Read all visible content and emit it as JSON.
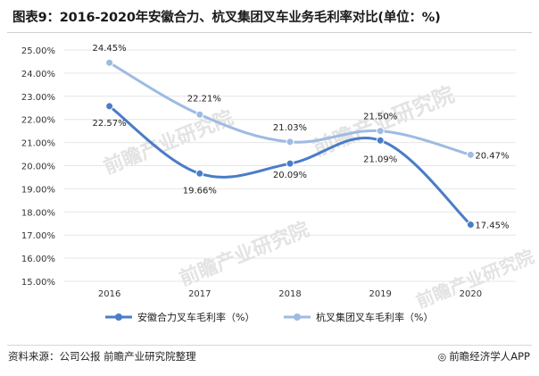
{
  "title": "图表9：2016-2020年安徽合力、杭叉集团叉车业务毛利率对比(单位：%)",
  "chart_data": {
    "type": "line",
    "categories": [
      "2016",
      "2017",
      "2018",
      "2019",
      "2020"
    ],
    "series": [
      {
        "name": "安徽合力叉车毛利率（%）",
        "color": "#4a7cc7",
        "values": [
          22.57,
          19.66,
          20.09,
          21.09,
          17.45
        ],
        "labels": [
          "22.57%",
          "19.66%",
          "20.09%",
          "21.09%",
          "17.45%"
        ]
      },
      {
        "name": "杭叉集团叉车毛利率（%）",
        "color": "#9dbbe3",
        "values": [
          24.45,
          22.21,
          21.03,
          21.5,
          20.47
        ],
        "labels": [
          "24.45%",
          "22.21%",
          "21.03%",
          "21.50%",
          "20.47%"
        ]
      }
    ],
    "ylim": [
      15,
      25
    ],
    "yticks": [
      "15.00%",
      "16.00%",
      "17.00%",
      "18.00%",
      "19.00%",
      "20.00%",
      "21.00%",
      "22.00%",
      "23.00%",
      "24.00%",
      "25.00%"
    ],
    "grid": true,
    "legend": "bottom"
  },
  "watermark": "前瞻产业研究院",
  "footer": {
    "source": "资料来源：公司公报 前瞻产业研究院整理",
    "brand": "前瞻经济学人APP",
    "brand_icon": "circle-logo-icon"
  }
}
